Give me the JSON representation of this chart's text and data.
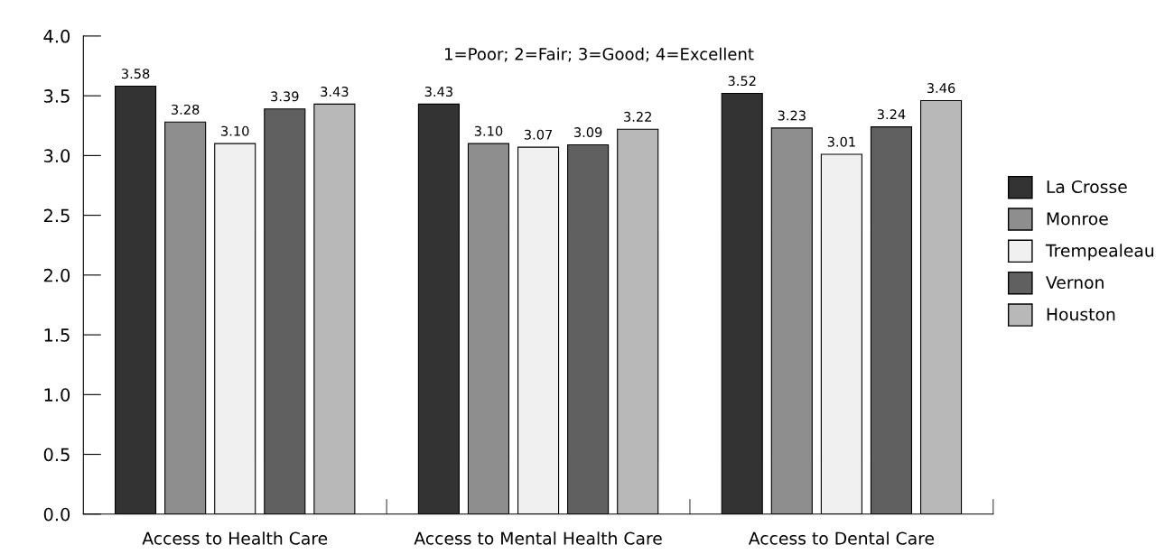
{
  "chart_data": {
    "type": "bar",
    "subtitle": "1=Poor; 2=Fair; 3=Good; 4=Excellent",
    "categories": [
      "Access to Health Care",
      "Access to Mental Health Care",
      "Access to Dental Care"
    ],
    "series": [
      {
        "name": "La Crosse",
        "color": "#333333",
        "values": [
          3.58,
          3.43,
          3.52
        ]
      },
      {
        "name": "Monroe",
        "color": "#8e8e8e",
        "values": [
          3.28,
          3.1,
          3.23
        ]
      },
      {
        "name": "Trempealeau",
        "color": "#f0f0f0",
        "values": [
          3.1,
          3.07,
          3.01
        ]
      },
      {
        "name": "Vernon",
        "color": "#606060",
        "values": [
          3.39,
          3.09,
          3.24
        ]
      },
      {
        "name": "Houston",
        "color": "#b8b8b8",
        "values": [
          3.43,
          3.22,
          3.46
        ]
      }
    ],
    "value_labels": [
      [
        "3.58",
        "3.43",
        "3.52"
      ],
      [
        "3.28",
        "3.10",
        "3.23"
      ],
      [
        "3.10",
        "3.07",
        "3.01"
      ],
      [
        "3.39",
        "3.09",
        "3.24"
      ],
      [
        "3.43",
        "3.22",
        "3.46"
      ]
    ],
    "ylim": [
      0,
      4
    ],
    "yticks": [
      {
        "value": 0,
        "label": "0.0"
      },
      {
        "value": 0.5,
        "label": "0.5"
      },
      {
        "value": 1,
        "label": "1.0"
      },
      {
        "value": 1.5,
        "label": "1.5"
      },
      {
        "value": 2,
        "label": "2.0"
      },
      {
        "value": 2.5,
        "label": "2.5"
      },
      {
        "value": 3,
        "label": "3.0"
      },
      {
        "value": 3.5,
        "label": "3.5"
      },
      {
        "value": 4,
        "label": "4.0"
      }
    ],
    "grid": false,
    "legend": "right"
  }
}
